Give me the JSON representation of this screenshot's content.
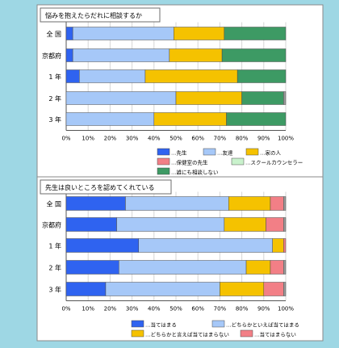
{
  "colors": {
    "background": "#9ed7e4",
    "panel": "#ffffff",
    "blue": "#2f63f0",
    "light_blue": "#a6c8f8",
    "yellow": "#f5c200",
    "pink": "#f27f86",
    "light_green": "#c9f2cc",
    "green": "#3d9a64",
    "gray": "#9c9c9c"
  },
  "chart_data": [
    {
      "type": "bar",
      "orientation": "horizontal",
      "stacked": "percent",
      "title": "悩みを抱えたらだれに相談するか",
      "categories": [
        "全 国",
        "京都府",
        "1 年",
        "2 年",
        "3 年"
      ],
      "xlim": [
        0,
        100
      ],
      "x_ticks": [
        "0%",
        "10%",
        "20%",
        "30%",
        "40%",
        "50%",
        "60%",
        "70%",
        "80%",
        "90%",
        "100%"
      ],
      "grid": true,
      "legend_position": "bottom",
      "series": [
        {
          "name": "…先生",
          "color": "#2f63f0",
          "values": [
            3,
            3,
            6,
            0,
            0
          ]
        },
        {
          "name": "…友達",
          "color": "#a6c8f8",
          "values": [
            46,
            44,
            30,
            50,
            40
          ]
        },
        {
          "name": "…家の人",
          "color": "#f5c200",
          "values": [
            23,
            24,
            42,
            30,
            33
          ]
        },
        {
          "name": "…保健室の先生",
          "color": "#f27f86",
          "values": [
            0,
            0,
            0,
            0,
            0
          ]
        },
        {
          "name": "…スクールカウンセラー",
          "color": "#c9f2cc",
          "values": [
            0,
            0,
            0,
            0,
            0
          ]
        },
        {
          "name": "…誰にも相談しない",
          "color": "#3d9a64",
          "values": [
            28,
            29,
            22,
            19,
            27
          ]
        }
      ]
    },
    {
      "type": "bar",
      "orientation": "horizontal",
      "stacked": "percent",
      "title": "先生は良いところを認めてくれている",
      "categories": [
        "全 国",
        "京都府",
        "1 年",
        "2 年",
        "3 年"
      ],
      "xlim": [
        0,
        100
      ],
      "x_ticks": [
        "0%",
        "10%",
        "20%",
        "30%",
        "40%",
        "50%",
        "60%",
        "70%",
        "80%",
        "90%",
        "100%"
      ],
      "grid": true,
      "legend_position": "bottom",
      "series": [
        {
          "name": "…当てはまる",
          "color": "#2f63f0",
          "values": [
            27,
            23,
            33,
            24,
            18
          ]
        },
        {
          "name": "…どちらかといえば当てはまる",
          "color": "#a6c8f8",
          "values": [
            47,
            49,
            61,
            58,
            52
          ]
        },
        {
          "name": "…どちらかと言えば当てはまらない",
          "color": "#f5c200",
          "values": [
            19,
            19,
            5,
            11,
            20
          ]
        },
        {
          "name": "…当てはまらない",
          "color": "#f27f86",
          "values": [
            6,
            8,
            1,
            6,
            9
          ]
        }
      ]
    }
  ]
}
